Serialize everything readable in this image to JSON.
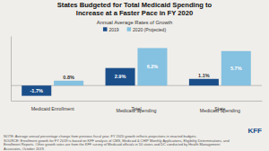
{
  "chart_data": {
    "type": "bar",
    "title": "States Budgeted for Total Medicaid Spending to\nIncrease at a Faster Pace in FY 2020",
    "subtitle": "Annual Average Rates of Growth",
    "categories": [
      "Medicaid Enrollment",
      "Total\nMedicaid Spending",
      "State\nMedicaid Spending"
    ],
    "series": [
      {
        "name": "2019",
        "color": "#1b4f8a",
        "values": [
          -1.7,
          2.9,
          1.1
        ],
        "value_labels": [
          "-1.7%",
          "2.9%",
          "1.1%"
        ]
      },
      {
        "name": "2020 (Projected)",
        "color": "#85c1e0",
        "values": [
          0.8,
          6.2,
          5.7
        ],
        "value_labels": [
          "0.8%",
          "6.2%",
          "5.7%"
        ]
      }
    ],
    "ylim": [
      -2.5,
      8.2
    ],
    "tick_labels": "x",
    "data_labels": true,
    "legend": "top",
    "grid": false,
    "annotations": [
      "NOTE: Average annual percentage change from previous fiscal year. FY 2020 growth reflects projections in enacted budgets.\nSOURCE: Enrollment growth for FY 2019 is based on KFF analysis of CMS, Medicaid & CHIP Monthly Applications, Eligibility Determinations, and\nEnrollment Reports. Other growth rates are from the KFF survey of Medicaid officials in 50 states and DC conducted by Health Management\nAssociates, October 2019.",
      "KFF"
    ]
  }
}
